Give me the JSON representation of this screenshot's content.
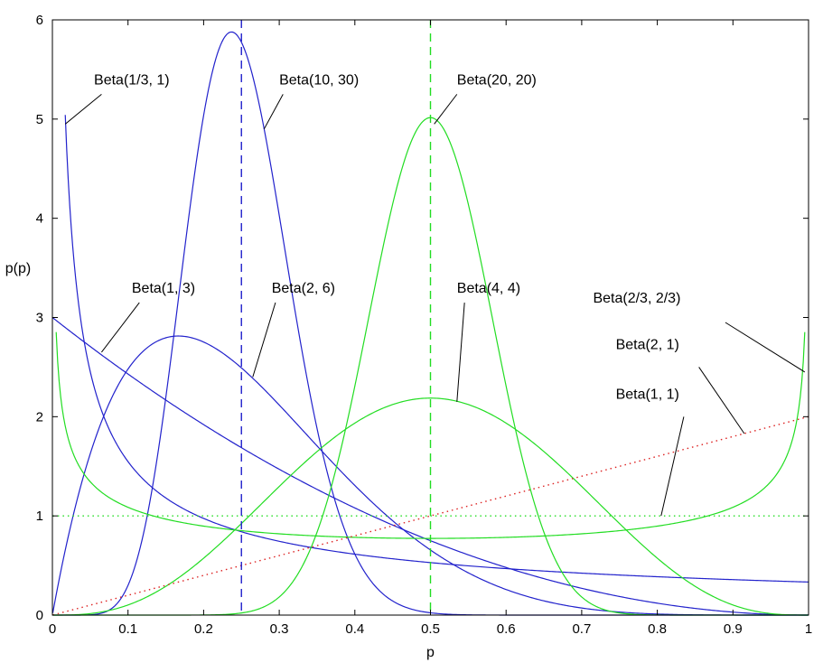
{
  "chart_data": {
    "type": "line",
    "title": "",
    "xlabel": "p",
    "ylabel": "p(p)",
    "xlim": [
      0,
      1
    ],
    "ylim": [
      0,
      6
    ],
    "grid": false,
    "x_ticks": [
      0,
      0.1,
      0.2,
      0.3,
      0.4,
      0.5,
      0.6,
      0.7,
      0.8,
      0.9,
      1
    ],
    "x_tick_labels": [
      "0",
      "0.1",
      "0.2",
      "0.3",
      "0.4",
      "0.5",
      "0.6",
      "0.7",
      "0.8",
      "0.9",
      "1"
    ],
    "y_ticks": [
      0,
      1,
      2,
      3,
      4,
      5,
      6
    ],
    "y_tick_labels": [
      "0",
      "1",
      "2",
      "3",
      "4",
      "5",
      "6"
    ],
    "series": [
      {
        "name": "Beta(1/3, 1)",
        "a": 0.3333333,
        "b": 1,
        "color": "#2222cc",
        "style": "solid",
        "x_start": 0.017
      },
      {
        "name": "Beta(10, 30)",
        "a": 10,
        "b": 30,
        "color": "#2222cc",
        "style": "solid"
      },
      {
        "name": "Beta(1, 3)",
        "a": 1,
        "b": 3,
        "color": "#2222cc",
        "style": "solid"
      },
      {
        "name": "Beta(2, 6)",
        "a": 2,
        "b": 6,
        "color": "#2222cc",
        "style": "solid"
      },
      {
        "name": "Beta(20, 20)",
        "a": 20,
        "b": 20,
        "color": "#22dd22",
        "style": "solid"
      },
      {
        "name": "Beta(4, 4)",
        "a": 4,
        "b": 4,
        "color": "#22dd22",
        "style": "solid"
      },
      {
        "name": "Beta(2/3, 2/3)",
        "a": 0.6666667,
        "b": 0.6666667,
        "color": "#22dd22",
        "style": "solid",
        "x_start": 0.005,
        "x_end": 0.995
      },
      {
        "name": "Beta(2, 1)",
        "a": 2,
        "b": 1,
        "color": "#dd2222",
        "style": "dotted"
      },
      {
        "name": "Beta(1, 1)",
        "a": 1,
        "b": 1,
        "color": "#22dd22",
        "style": "dotted"
      }
    ],
    "vertical_lines": [
      {
        "x": 0.25,
        "color": "#2222cc",
        "style": "dashed"
      },
      {
        "x": 0.5,
        "color": "#22dd22",
        "style": "dashed"
      }
    ],
    "annotations": [
      {
        "text": "Beta(1/3, 1)",
        "text_x": 0.055,
        "text_y": 5.35,
        "from": [
          0.065,
          5.25
        ],
        "to": [
          0.017,
          4.95
        ]
      },
      {
        "text": "Beta(10, 30)",
        "text_x": 0.3,
        "text_y": 5.35,
        "from": [
          0.305,
          5.25
        ],
        "to": [
          0.28,
          4.9
        ]
      },
      {
        "text": "Beta(20, 20)",
        "text_x": 0.535,
        "text_y": 5.35,
        "from": [
          0.535,
          5.25
        ],
        "to": [
          0.505,
          4.95
        ]
      },
      {
        "text": "Beta(1, 3)",
        "text_x": 0.105,
        "text_y": 3.25,
        "from": [
          0.115,
          3.15
        ],
        "to": [
          0.065,
          2.65
        ]
      },
      {
        "text": "Beta(2, 6)",
        "text_x": 0.29,
        "text_y": 3.25,
        "from": [
          0.295,
          3.15
        ],
        "to": [
          0.265,
          2.4
        ]
      },
      {
        "text": "Beta(4, 4)",
        "text_x": 0.535,
        "text_y": 3.25,
        "from": [
          0.545,
          3.15
        ],
        "to": [
          0.535,
          2.15
        ]
      },
      {
        "text": "Beta(2/3, 2/3)",
        "text_x": 0.715,
        "text_y": 3.15,
        "from": [
          0.89,
          2.95
        ],
        "to": [
          0.995,
          2.45
        ]
      },
      {
        "text": "Beta(2, 1)",
        "text_x": 0.745,
        "text_y": 2.68,
        "from": [
          0.855,
          2.5
        ],
        "to": [
          0.915,
          1.83
        ]
      },
      {
        "text": "Beta(1, 1)",
        "text_x": 0.745,
        "text_y": 2.18,
        "from": [
          0.835,
          2.0
        ],
        "to": [
          0.805,
          1.0
        ]
      }
    ]
  }
}
